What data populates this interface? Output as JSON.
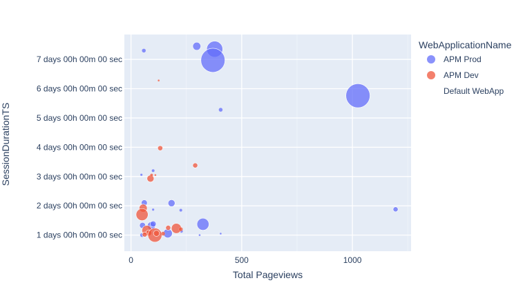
{
  "chart_data": {
    "type": "scatter",
    "title": "",
    "xlabel": "Total Pageviews",
    "ylabel": "SessionDurationTS",
    "xlim": [
      -30,
      1265
    ],
    "ylim": [
      0.45,
      7.85
    ],
    "x_ticks": [
      0,
      500,
      1000
    ],
    "y_ticks": [
      {
        "value": 1,
        "label": "1 days 00h 00m 00 sec"
      },
      {
        "value": 2,
        "label": "2 days 00h 00m 00 sec"
      },
      {
        "value": 3,
        "label": "3 days 00h 00m 00 sec"
      },
      {
        "value": 4,
        "label": "4 days 00h 00m 00 sec"
      },
      {
        "value": 5,
        "label": "5 days 00h 00m 00 sec"
      },
      {
        "value": 6,
        "label": "6 days 00h 00m 00 sec"
      },
      {
        "value": 7,
        "label": "7 days 00h 00m 00 sec"
      }
    ],
    "grid": true,
    "legend": {
      "title": "WebApplicationName",
      "placement": "right"
    },
    "series": [
      {
        "name": "APM Prod",
        "color": "#636efa",
        "points": [
          {
            "x": 58,
            "y": 7.3,
            "s": 2
          },
          {
            "x": 297,
            "y": 7.45,
            "s": 4
          },
          {
            "x": 378,
            "y": 7.35,
            "s": 8
          },
          {
            "x": 370,
            "y": 6.97,
            "s": 12
          },
          {
            "x": 1025,
            "y": 5.76,
            "s": 12
          },
          {
            "x": 405,
            "y": 5.28,
            "s": 2
          },
          {
            "x": 100,
            "y": 3.2,
            "s": 1.5
          },
          {
            "x": 47,
            "y": 3.06,
            "s": 1.2
          },
          {
            "x": 60,
            "y": 2.1,
            "s": 3
          },
          {
            "x": 183,
            "y": 2.09,
            "s": 3.5
          },
          {
            "x": 1195,
            "y": 1.88,
            "s": 2.5
          },
          {
            "x": 225,
            "y": 1.85,
            "s": 1.5
          },
          {
            "x": 100,
            "y": 1.87,
            "s": 1.2
          },
          {
            "x": 325,
            "y": 1.37,
            "s": 6
          },
          {
            "x": 52,
            "y": 1.33,
            "s": 3
          },
          {
            "x": 92,
            "y": 1.32,
            "s": 4
          },
          {
            "x": 100,
            "y": 1.38,
            "s": 3
          },
          {
            "x": 166,
            "y": 1.06,
            "s": 4.5
          },
          {
            "x": 50,
            "y": 1.0,
            "s": 2
          },
          {
            "x": 228,
            "y": 1.13,
            "s": 1.5
          },
          {
            "x": 310,
            "y": 1.0,
            "s": 1
          },
          {
            "x": 405,
            "y": 1.05,
            "s": 1
          }
        ]
      },
      {
        "name": "APM Dev",
        "color": "#ef553b",
        "points": [
          {
            "x": 125,
            "y": 6.28,
            "s": 1
          },
          {
            "x": 132,
            "y": 3.97,
            "s": 2.5
          },
          {
            "x": 290,
            "y": 3.38,
            "s": 2.5
          },
          {
            "x": 88,
            "y": 2.93,
            "s": 3.5
          },
          {
            "x": 93,
            "y": 3.05,
            "s": 1.5
          },
          {
            "x": 110,
            "y": 3.05,
            "s": 1
          },
          {
            "x": 55,
            "y": 1.92,
            "s": 4
          },
          {
            "x": 50,
            "y": 1.7,
            "s": 6
          },
          {
            "x": 72,
            "y": 1.16,
            "s": 5
          },
          {
            "x": 80,
            "y": 1.07,
            "s": 3
          },
          {
            "x": 108,
            "y": 1.0,
            "s": 7
          },
          {
            "x": 115,
            "y": 1.06,
            "s": 3
          },
          {
            "x": 62,
            "y": 1.02,
            "s": 2.5
          },
          {
            "x": 168,
            "y": 1.25,
            "s": 2.5
          },
          {
            "x": 205,
            "y": 1.23,
            "s": 5
          },
          {
            "x": 225,
            "y": 1.2,
            "s": 2
          },
          {
            "x": 145,
            "y": 1.05,
            "s": 2
          }
        ]
      },
      {
        "name": "Default WebApp",
        "color": "#ffffff",
        "points": []
      }
    ]
  }
}
